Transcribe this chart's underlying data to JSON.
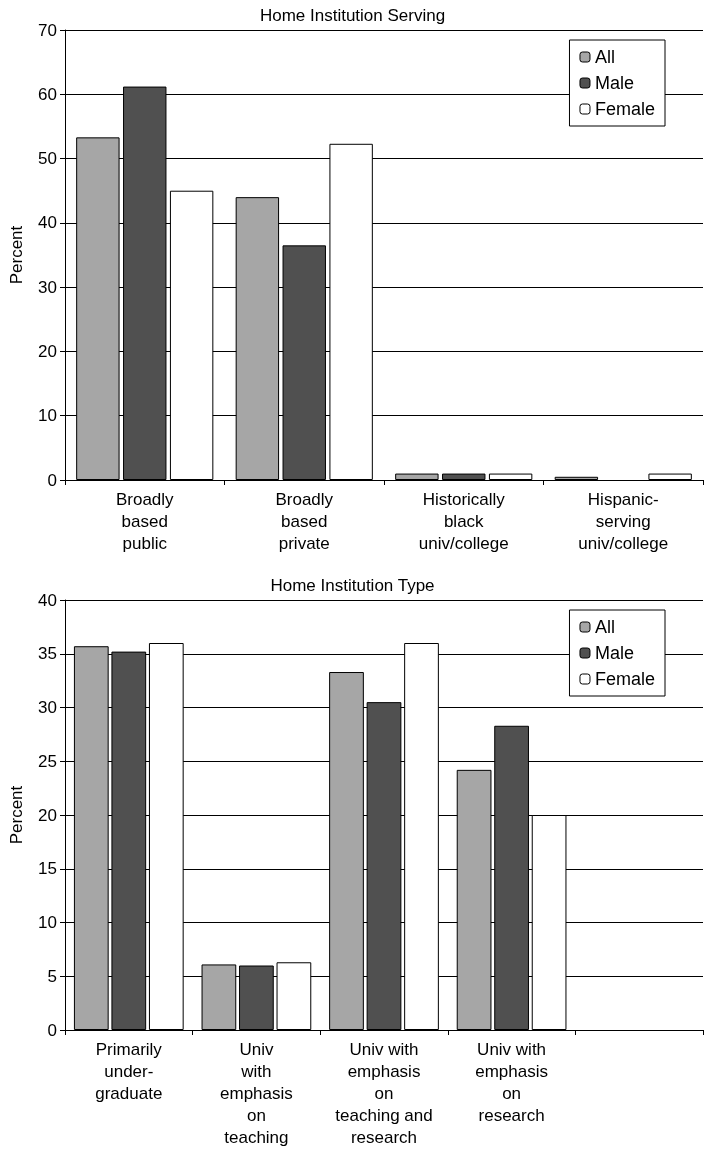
{
  "chart_data": [
    {
      "type": "bar",
      "title": "Home Institution Serving",
      "ylabel": "Percent",
      "categories": [
        "Broadly\nbased\npublic",
        "Broadly\nbased\nprivate",
        "Historically\nblack\nuniv/college",
        "Hispanic-\nserving\nuniv/college"
      ],
      "series": [
        {
          "name": "All",
          "color": "#a6a6a6",
          "values": [
            53.3,
            44,
            1,
            0.5
          ]
        },
        {
          "name": "Male",
          "color": "#505050",
          "values": [
            61.2,
            36.5,
            1,
            null
          ]
        },
        {
          "name": "Female",
          "color": "#ffffff",
          "values": [
            45,
            52.3,
            1,
            1
          ]
        }
      ],
      "ylim": [
        0,
        70
      ],
      "yticks": [
        0,
        10,
        20,
        30,
        40,
        50,
        60,
        70
      ],
      "grid": "y",
      "legend": "top right"
    },
    {
      "type": "bar",
      "title": "Home Institution Type",
      "ylabel": "Percent",
      "categories": [
        "Primarily\nunder-\ngraduate",
        "Univ\nwith\nemphasis\non\nteaching",
        "Univ with\nemphasis\non\nteaching and\nresearch",
        "Univ with\nemphasis\non\nresearch",
        null
      ],
      "series": [
        {
          "name": "All",
          "color": "#a6a6a6",
          "values": [
            35.7,
            6.1,
            33.3,
            24.2,
            null
          ]
        },
        {
          "name": "Male",
          "color": "#505050",
          "values": [
            35.2,
            6,
            30.5,
            28.3,
            null
          ]
        },
        {
          "name": "Female",
          "color": "#ffffff",
          "values": [
            36,
            6.3,
            36,
            20,
            null
          ]
        }
      ],
      "ylim": [
        0,
        40
      ],
      "yticks": [
        0,
        5,
        10,
        15,
        20,
        25,
        30,
        35,
        40
      ],
      "grid": "y",
      "legend": "top right"
    }
  ]
}
